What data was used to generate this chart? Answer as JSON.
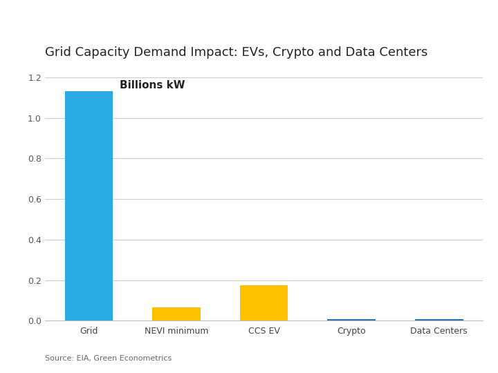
{
  "title": "Grid Capacity Demand Impact: EVs, Crypto and Data Centers",
  "categories": [
    "Grid",
    "NEVI minimum",
    "CCS EV",
    "Crypto",
    "Data Centers"
  ],
  "values": [
    1.13,
    0.067,
    0.175,
    0.008,
    0.008
  ],
  "bar_colors": [
    "#29ABE2",
    "#FFC000",
    "#FFC000",
    "#2E75B6",
    "#2E75B6"
  ],
  "ylabel_annotation": "Billions kW",
  "ylim": [
    0,
    1.25
  ],
  "yticks": [
    0.0,
    0.2,
    0.4,
    0.6,
    0.8,
    1.0,
    1.2
  ],
  "source_text": "Source: EIA, Green Econometrics",
  "background_color": "#FFFFFF",
  "plot_bg_color": "#FFFFFF",
  "grid_color": "#CCCCCC",
  "title_fontsize": 13,
  "label_fontsize": 9,
  "annotation_fontsize": 11
}
